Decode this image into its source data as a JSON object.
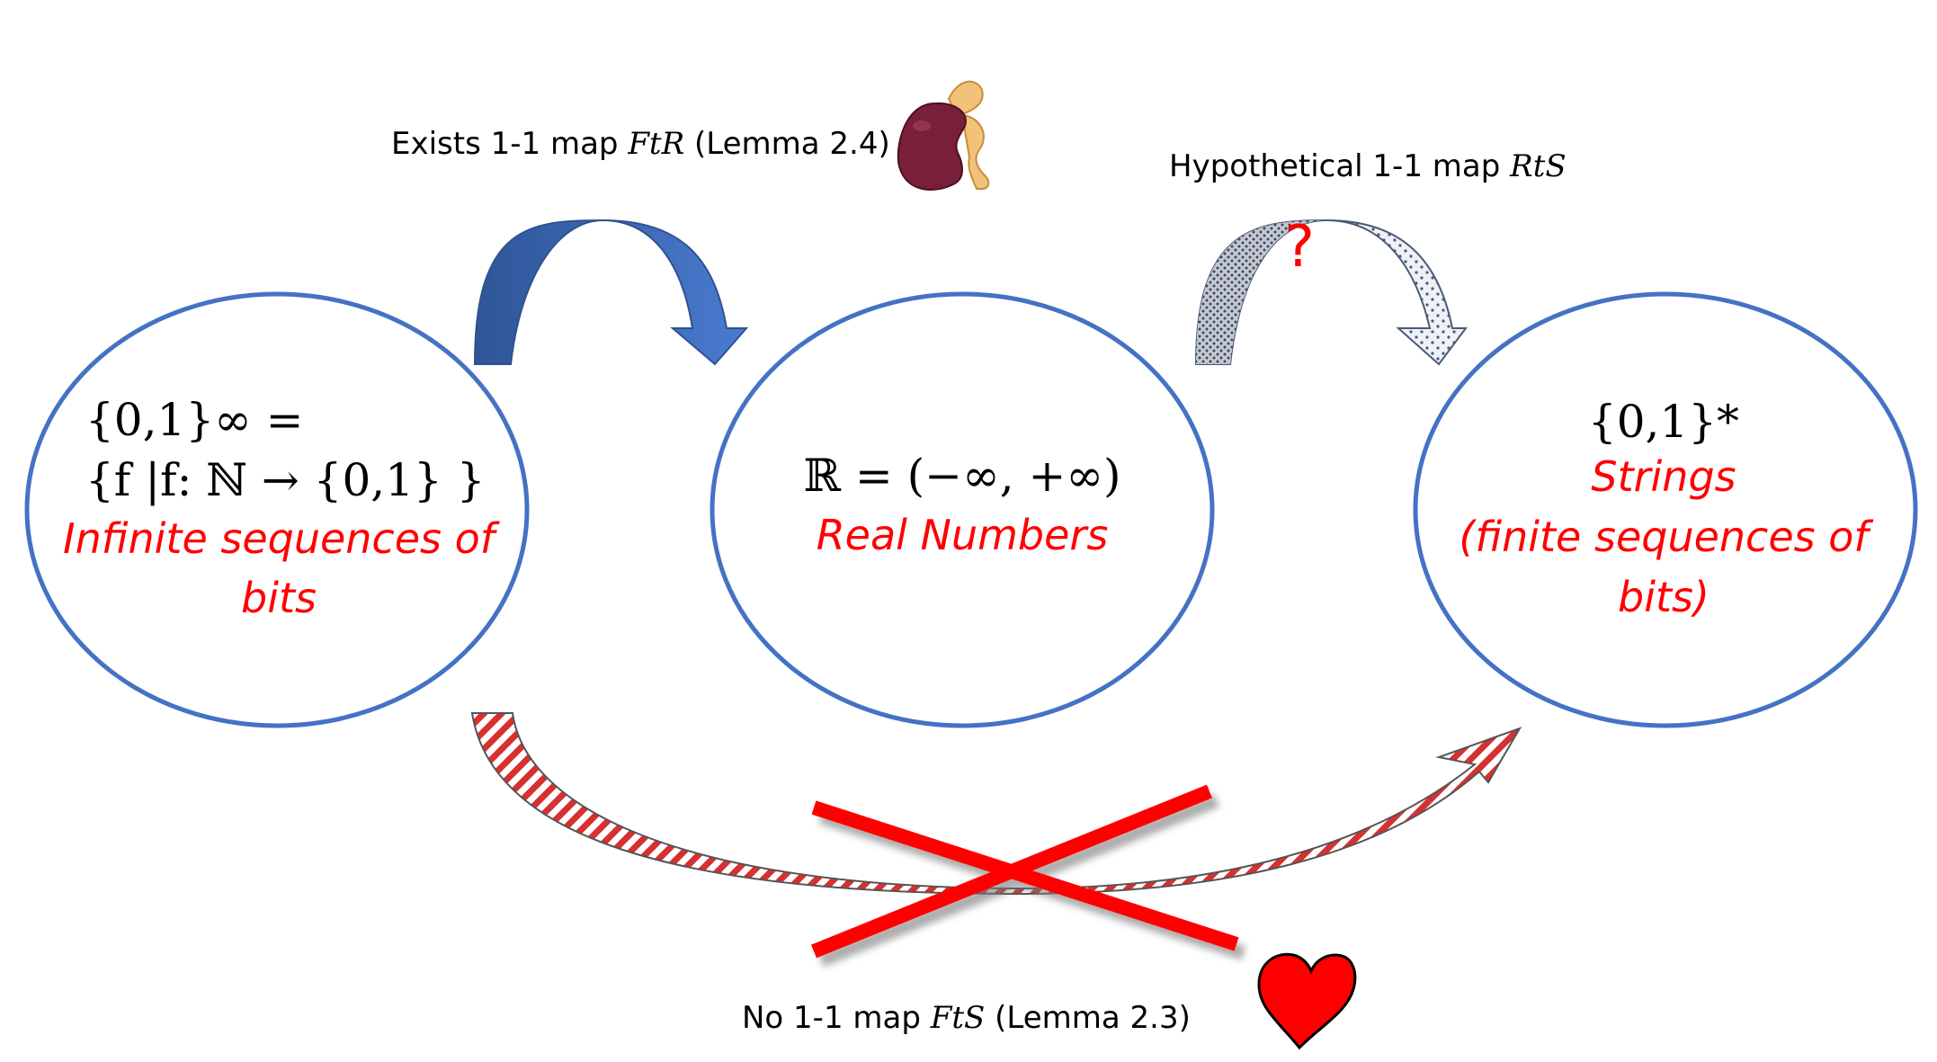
{
  "captions": {
    "top_left": {
      "prefix": "Exists 1-1 map ",
      "map": "FtR",
      "suffix": " (Lemma 2.4)"
    },
    "top_right": {
      "prefix": "Hypothetical 1-1 map ",
      "map": "RtS"
    },
    "bottom": {
      "prefix": "No 1-1 map ",
      "map": "FtS",
      "suffix": " (Lemma 2.3)"
    }
  },
  "sets": {
    "infinite": {
      "math_line1": "{0,1}∞ =",
      "math_line2": "{f |f: ℕ → {0,1} }",
      "label_line1": "Infinite sequences of",
      "label_line2": "bits"
    },
    "reals": {
      "math": "ℝ = (−∞, +∞)",
      "label": "Real Numbers"
    },
    "strings": {
      "math": "{0,1}*",
      "label_line1": "Strings",
      "label_line2": "(finite sequences of",
      "label_line3": "bits)"
    }
  },
  "question_mark": "?",
  "colors": {
    "ellipse_stroke": "#4472c4",
    "arrow_blue": "#3b64ad",
    "red": "#ff0000",
    "gray_arrow": "#c8ccd4"
  },
  "icons": [
    "kidney-icon",
    "heart-icon",
    "cross-out-icon"
  ]
}
